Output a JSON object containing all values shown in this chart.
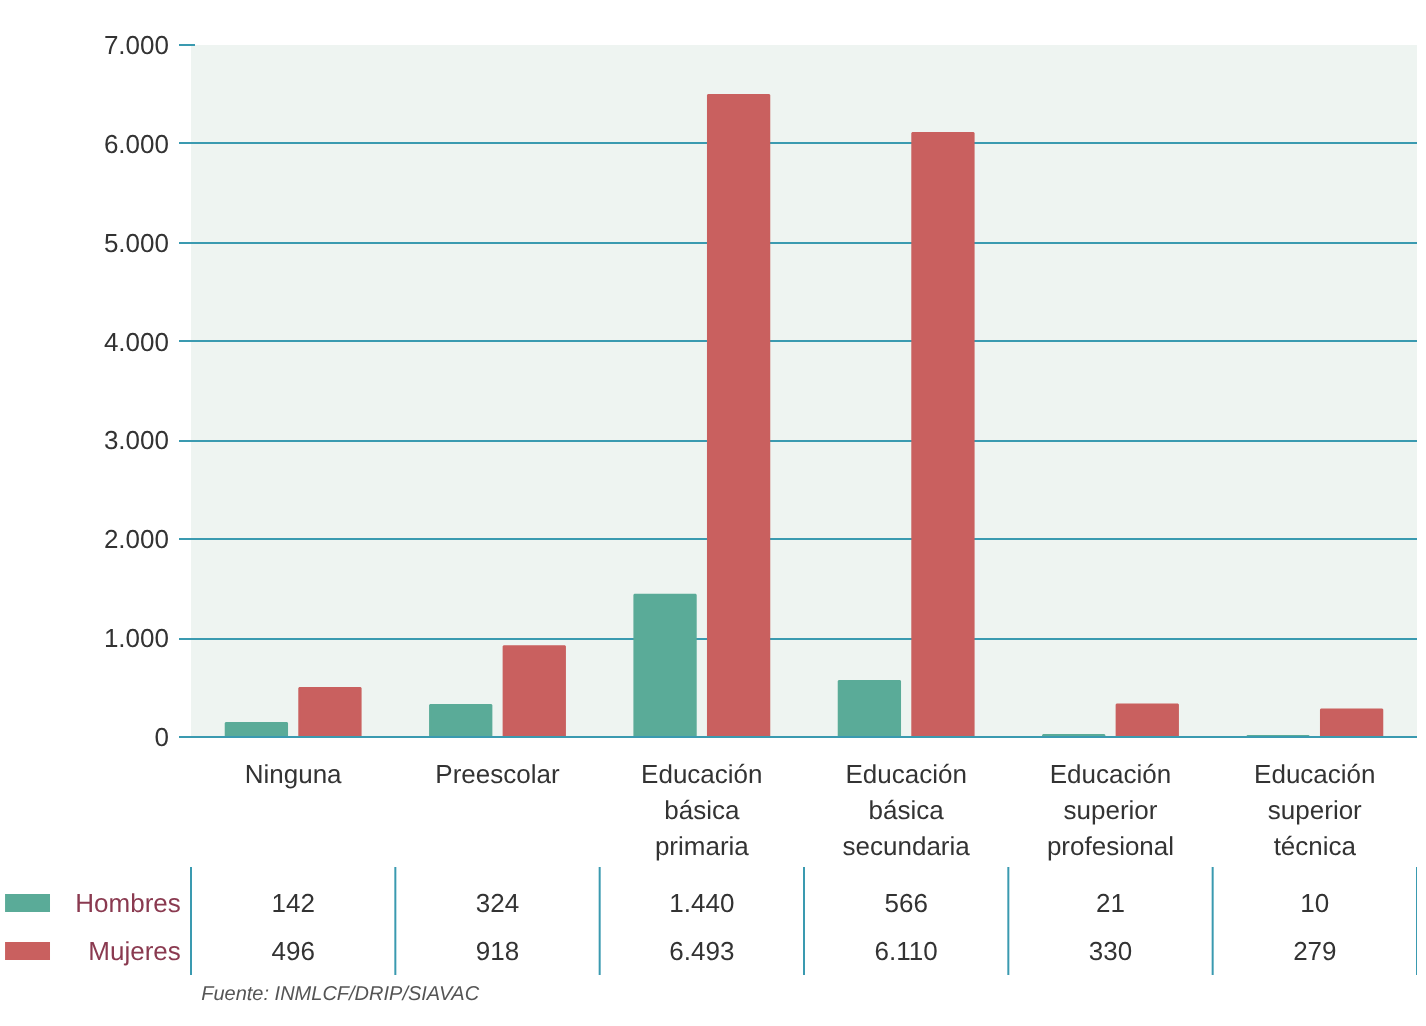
{
  "chart_data": {
    "type": "bar",
    "categories": [
      "Ninguna",
      "Preescolar",
      "Educación básica primaria",
      "Educación básica secundaria",
      "Educación superior profesional",
      "Educación superior técnica"
    ],
    "series": [
      {
        "name": "Hombres",
        "color": "#5aab98",
        "values": [
          142,
          324,
          1440,
          566,
          21,
          10
        ],
        "value_labels": [
          "142",
          "324",
          "1.440",
          "566",
          "21",
          "10"
        ]
      },
      {
        "name": "Mujeres",
        "color": "#c9605f",
        "values": [
          496,
          918,
          6493,
          6110,
          330,
          279
        ],
        "value_labels": [
          "496",
          "918",
          "6.493",
          "6.110",
          "330",
          "279"
        ]
      }
    ],
    "ylim": [
      0,
      7000
    ],
    "yticks": [
      {
        "value": 0,
        "label": "0"
      },
      {
        "value": 1000,
        "label": "1.000"
      },
      {
        "value": 2000,
        "label": "2.000"
      },
      {
        "value": 3000,
        "label": "3.000"
      },
      {
        "value": 4000,
        "label": "4.000"
      },
      {
        "value": 5000,
        "label": "5.000"
      },
      {
        "value": 6000,
        "label": "6.000"
      },
      {
        "value": 7000,
        "label": "7.000"
      }
    ],
    "grid": "y",
    "legend": "bottom left",
    "annotations": [
      "Fuente: INMLCF/DRIP/SIAVAC"
    ]
  }
}
